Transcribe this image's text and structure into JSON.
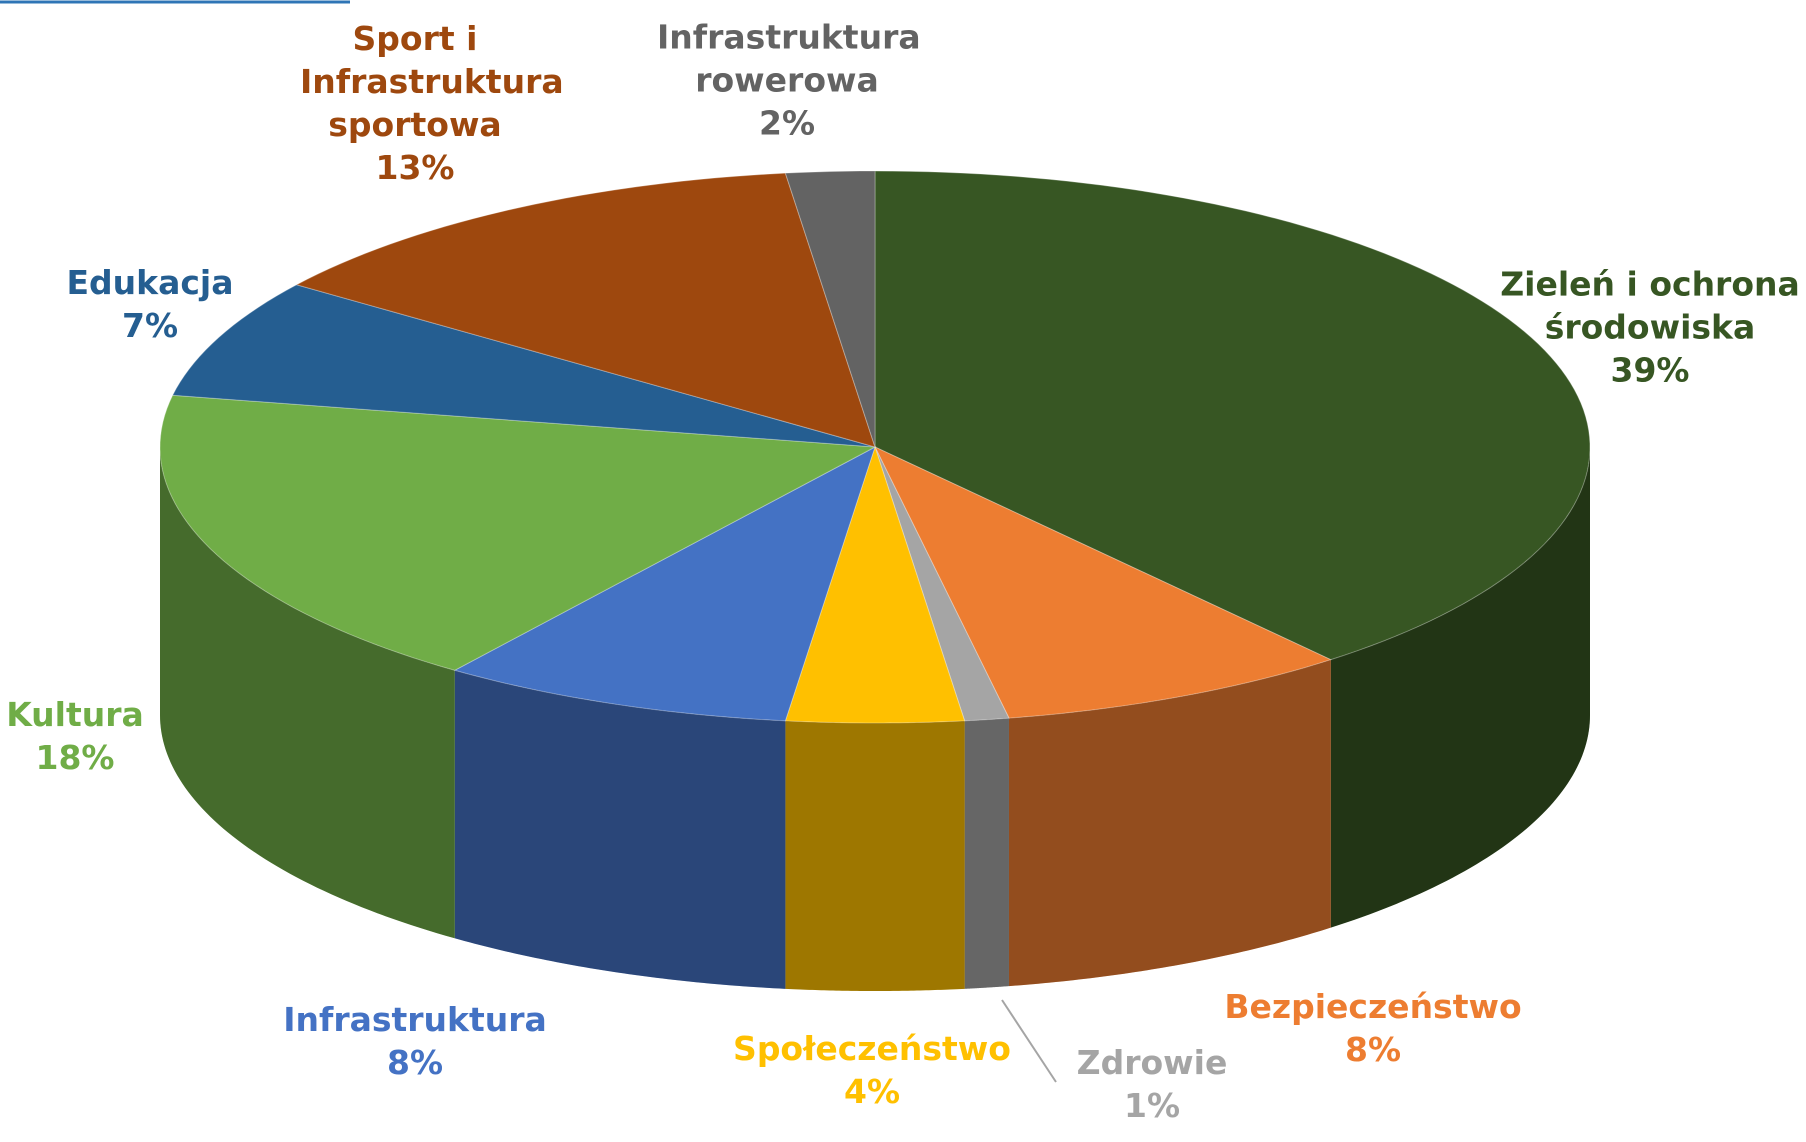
{
  "chart_data": {
    "type": "pie3d",
    "categories": [
      "Zieleń i ochrona środowiska",
      "Bezpieczeństwo",
      "Zdrowie",
      "Społeczeństwo",
      "Infrastruktura",
      "Kultura",
      "Edukacja",
      "Sport i Infrastruktura sportowa",
      "Infrastruktura rowerowa"
    ],
    "values": [
      39,
      8,
      1,
      4,
      8,
      18,
      7,
      13,
      2
    ],
    "value_labels": [
      "39%",
      "8%",
      "1%",
      "4%",
      "8%",
      "18%",
      "7%",
      "13%",
      "2%"
    ],
    "colors": [
      "#375623",
      "#ed7d31",
      "#a5a5a5",
      "#ffc000",
      "#4472c4",
      "#70ad47",
      "#255e91",
      "#9e480e",
      "#636363"
    ]
  }
}
